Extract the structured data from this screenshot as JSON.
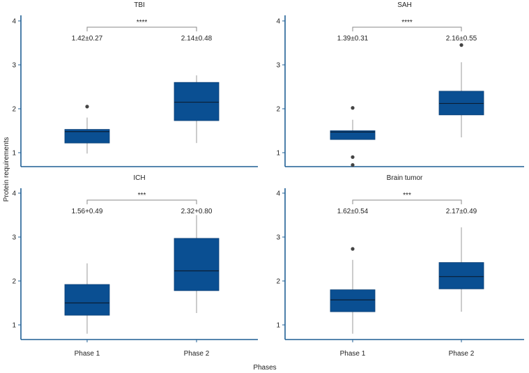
{
  "figure": {
    "xlabel": "Phases",
    "ylabel": "Protein requirements",
    "box_color": "#0a4f92",
    "axis_color": "#1f5f94",
    "bracket_color": "#888888",
    "outlier_color": "#444444"
  },
  "chart_data": [
    {
      "type": "box",
      "title": "TBI",
      "categories": [
        "Phase 1",
        "Phase 2"
      ],
      "ylim": [
        0.7,
        4.2
      ],
      "yticks": [
        1,
        2,
        3,
        4
      ],
      "significance": "****",
      "boxes": [
        {
          "label": "Phase 1",
          "summary": "1.42±0.27",
          "whisker_low": 0.98,
          "q1": 1.22,
          "median": 1.48,
          "q3": 1.53,
          "whisker_high": 1.8,
          "outliers": [
            2.05
          ]
        },
        {
          "label": "Phase 2",
          "summary": "2.14±0.48",
          "whisker_low": 1.22,
          "q1": 1.73,
          "median": 2.15,
          "q3": 2.6,
          "whisker_high": 2.76,
          "outliers": []
        }
      ]
    },
    {
      "type": "box",
      "title": "SAH",
      "categories": [
        "Phase 1",
        "Phase 2"
      ],
      "ylim": [
        0.7,
        4.2
      ],
      "yticks": [
        1,
        2,
        3,
        4
      ],
      "significance": "****",
      "boxes": [
        {
          "label": "Phase 1",
          "summary": "1.39±0.31",
          "whisker_low": 1.3,
          "q1": 1.3,
          "median": 1.47,
          "q3": 1.5,
          "whisker_high": 1.75,
          "outliers": [
            2.02,
            0.9,
            0.72
          ]
        },
        {
          "label": "Phase 2",
          "summary": "2.16±0.55",
          "whisker_low": 1.35,
          "q1": 1.86,
          "median": 2.12,
          "q3": 2.4,
          "whisker_high": 3.06,
          "outliers": [
            3.45
          ]
        }
      ]
    },
    {
      "type": "box",
      "title": "ICH",
      "categories": [
        "Phase 1",
        "Phase 2"
      ],
      "ylim": [
        0.7,
        4.2
      ],
      "yticks": [
        1,
        2,
        3,
        4
      ],
      "significance": "***",
      "boxes": [
        {
          "label": "Phase 1",
          "summary": "1.56+0.49",
          "whisker_low": 0.8,
          "q1": 1.22,
          "median": 1.5,
          "q3": 1.92,
          "whisker_high": 2.4,
          "outliers": []
        },
        {
          "label": "Phase 2",
          "summary": "2.32+0.80",
          "whisker_low": 1.27,
          "q1": 1.78,
          "median": 2.23,
          "q3": 2.97,
          "whisker_high": 3.5,
          "outliers": []
        }
      ]
    },
    {
      "type": "box",
      "title": "Brain tumor",
      "categories": [
        "Phase 1",
        "Phase 2"
      ],
      "ylim": [
        0.7,
        4.2
      ],
      "yticks": [
        1,
        2,
        3,
        4
      ],
      "significance": "***",
      "boxes": [
        {
          "label": "Phase 1",
          "summary": "1.62±0.54",
          "whisker_low": 0.8,
          "q1": 1.3,
          "median": 1.57,
          "q3": 1.8,
          "whisker_high": 2.48,
          "outliers": [
            2.73
          ]
        },
        {
          "label": "Phase 2",
          "summary": "2.17±0.49",
          "whisker_low": 1.3,
          "q1": 1.82,
          "median": 2.1,
          "q3": 2.42,
          "whisker_high": 3.22,
          "outliers": []
        }
      ]
    }
  ]
}
